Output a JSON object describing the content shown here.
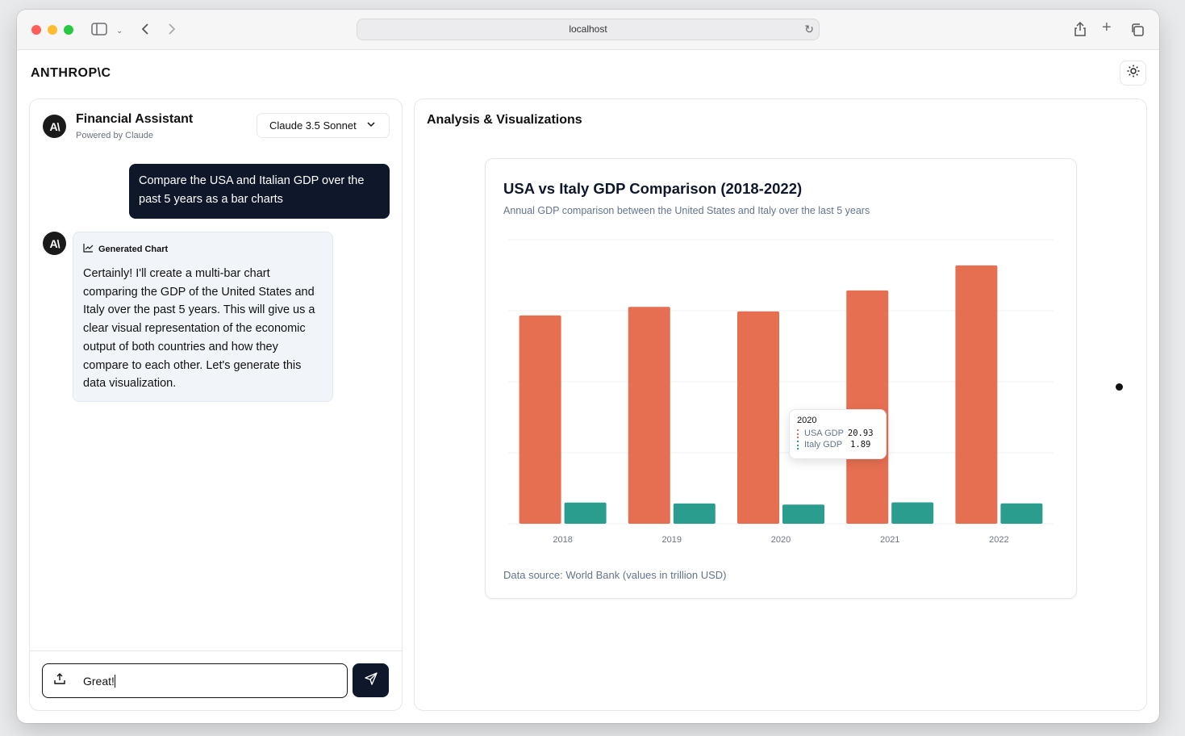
{
  "browser": {
    "url": "localhost"
  },
  "app": {
    "logo": "ANTHROP\\C"
  },
  "chat": {
    "assistant_name": "Financial Assistant",
    "assistant_subtitle": "Powered by Claude",
    "avatar_text": "A\\",
    "model": "Claude 3.5 Sonnet",
    "user_message": "Compare the USA and Italian GDP over the past 5 years as a bar charts",
    "ai_tag": "Generated Chart",
    "ai_message": "Certainly! I'll create a multi-bar chart comparing the GDP of the United States and Italy over the past 5 years. This will give us a clear visual representation of the economic output of both countries and how they compare to each other. Let's generate this data visualization.",
    "input_value": "Great!"
  },
  "panel": {
    "title": "Analysis & Visualizations"
  },
  "chart_data": {
    "type": "bar",
    "title": "USA vs Italy GDP Comparison (2018-2022)",
    "subtitle": "Annual GDP comparison between the United States and Italy over the last 5 years",
    "source": "Data source: World Bank (values in trillion USD)",
    "categories": [
      "2018",
      "2019",
      "2020",
      "2021",
      "2022"
    ],
    "series": [
      {
        "name": "USA GDP",
        "color": "#e76f51",
        "values": [
          20.53,
          21.38,
          20.93,
          23.0,
          25.46
        ]
      },
      {
        "name": "Italy GDP",
        "color": "#2a9d8f",
        "values": [
          2.09,
          2.0,
          1.89,
          2.11,
          2.01
        ]
      }
    ],
    "ylim": [
      0,
      28
    ],
    "grid": true,
    "tooltip": {
      "category": "2020",
      "rows": [
        {
          "name": "USA GDP",
          "value": "20.93"
        },
        {
          "name": "Italy GDP",
          "value": "1.89"
        }
      ]
    }
  }
}
